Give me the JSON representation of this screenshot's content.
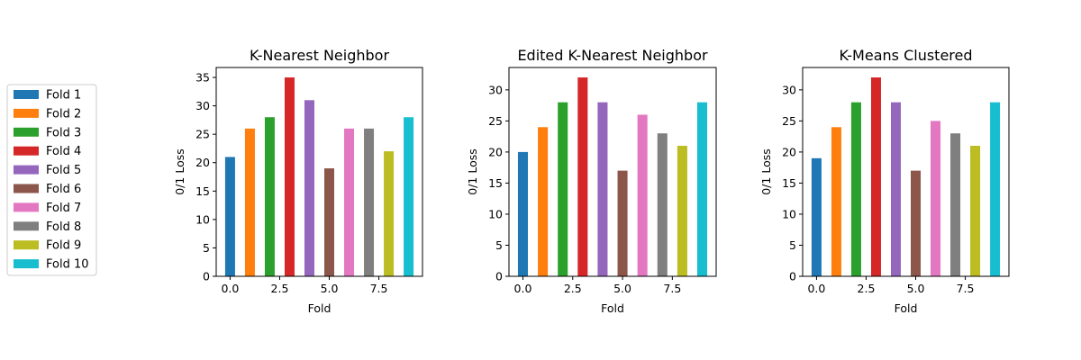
{
  "legend": {
    "entries": [
      "Fold 1",
      "Fold 2",
      "Fold 3",
      "Fold 4",
      "Fold 5",
      "Fold 6",
      "Fold 7",
      "Fold 8",
      "Fold 9",
      "Fold 10"
    ],
    "placement": "left",
    "colors": [
      "#1f77b4",
      "#ff7f0e",
      "#2ca02c",
      "#d62728",
      "#9467bd",
      "#8c564b",
      "#e377c2",
      "#7f7f7f",
      "#bcbd22",
      "#17becf"
    ]
  },
  "chart_data": [
    {
      "type": "bar",
      "title": "K-Nearest Neighbor",
      "xlabel": "Fold",
      "ylabel": "0/1 Loss",
      "x": [
        0,
        1,
        2,
        3,
        4,
        5,
        6,
        7,
        8,
        9
      ],
      "values": [
        21,
        26,
        28,
        35,
        31,
        19,
        26,
        26,
        22,
        28
      ],
      "xlim": [
        -0.7,
        9.7
      ],
      "ylim": [
        0,
        36.75
      ],
      "xticks": [
        0,
        2.5,
        5,
        7.5
      ],
      "xtick_labels": [
        "0.0",
        "2.5",
        "5.0",
        "7.5"
      ],
      "yticks": [
        0,
        5,
        10,
        15,
        20,
        25,
        30,
        35
      ],
      "ytick_labels": [
        "0",
        "5",
        "10",
        "15",
        "20",
        "25",
        "30",
        "35"
      ],
      "grid": false
    },
    {
      "type": "bar",
      "title": "Edited K-Nearest Neighbor",
      "xlabel": "Fold",
      "ylabel": "0/1 Loss",
      "x": [
        0,
        1,
        2,
        3,
        4,
        5,
        6,
        7,
        8,
        9
      ],
      "values": [
        20,
        24,
        28,
        32,
        28,
        17,
        26,
        23,
        21,
        28
      ],
      "xlim": [
        -0.7,
        9.7
      ],
      "ylim": [
        0,
        33.6
      ],
      "xticks": [
        0,
        2.5,
        5,
        7.5
      ],
      "xtick_labels": [
        "0.0",
        "2.5",
        "5.0",
        "7.5"
      ],
      "yticks": [
        0,
        5,
        10,
        15,
        20,
        25,
        30
      ],
      "ytick_labels": [
        "0",
        "5",
        "10",
        "15",
        "20",
        "25",
        "30"
      ],
      "grid": false
    },
    {
      "type": "bar",
      "title": "K-Means Clustered",
      "xlabel": "Fold",
      "ylabel": "0/1 Loss",
      "x": [
        0,
        1,
        2,
        3,
        4,
        5,
        6,
        7,
        8,
        9
      ],
      "values": [
        19,
        24,
        28,
        32,
        28,
        17,
        25,
        23,
        21,
        28
      ],
      "xlim": [
        -0.7,
        9.7
      ],
      "ylim": [
        0,
        33.6
      ],
      "xticks": [
        0,
        2.5,
        5,
        7.5
      ],
      "xtick_labels": [
        "0.0",
        "2.5",
        "5.0",
        "7.5"
      ],
      "yticks": [
        0,
        5,
        10,
        15,
        20,
        25,
        30
      ],
      "ytick_labels": [
        "0",
        "5",
        "10",
        "15",
        "20",
        "25",
        "30"
      ],
      "grid": false
    }
  ]
}
